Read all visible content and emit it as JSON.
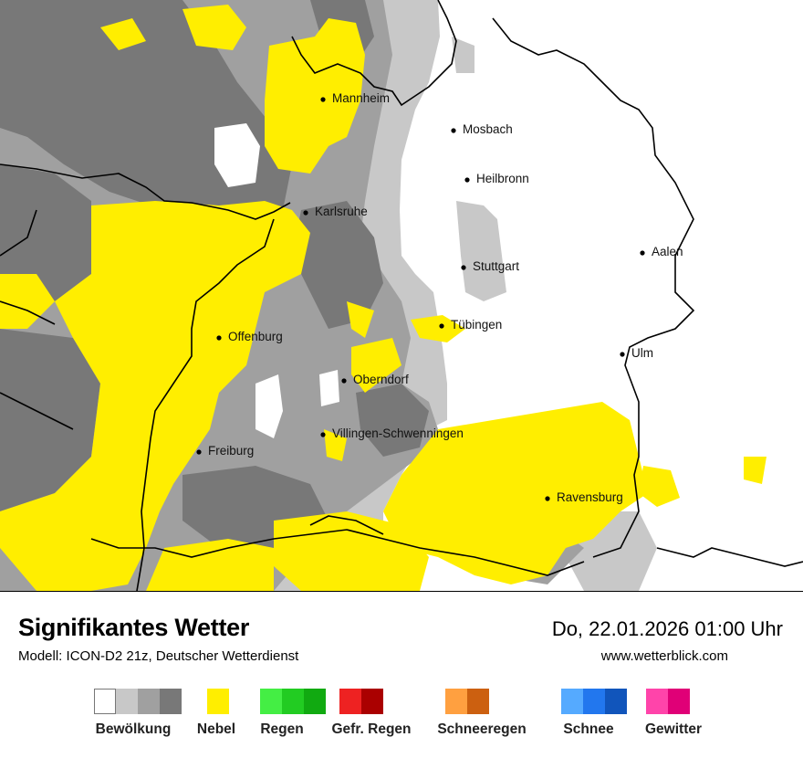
{
  "title": "Signifikantes Wetter",
  "model": "Modell: ICON-D2 21z, Deutscher Wetterdienst",
  "datetime": "Do, 22.01.2026 01:00 Uhr",
  "website": "www.wetterblick.com",
  "cities": [
    {
      "name": "Mannheim"
    },
    {
      "name": "Mosbach"
    },
    {
      "name": "Heilbronn"
    },
    {
      "name": "Karlsruhe"
    },
    {
      "name": "Aalen"
    },
    {
      "name": "Stuttgart"
    },
    {
      "name": "Tübingen"
    },
    {
      "name": "Offenburg"
    },
    {
      "name": "Ulm"
    },
    {
      "name": "Oberndorf"
    },
    {
      "name": "Villingen-Schwenningen"
    },
    {
      "name": "Freiburg"
    },
    {
      "name": "Ravensburg"
    }
  ],
  "legend": [
    {
      "label": "Bewölkung",
      "colors": [
        "#ffffff",
        "#c8c8c8",
        "#a0a0a0",
        "#787878"
      ]
    },
    {
      "label": "Nebel",
      "colors": [
        "#ffee00"
      ]
    },
    {
      "label": "Regen",
      "colors": [
        "#44ee44",
        "#22cc22",
        "#11aa11"
      ]
    },
    {
      "label": "Gefr. Regen",
      "colors": [
        "#ee2222",
        "#aa0000"
      ]
    },
    {
      "label": "Schneeregen",
      "colors": [
        "#ffa040",
        "#cc6010"
      ]
    },
    {
      "label": "Schnee",
      "colors": [
        "#55aaff",
        "#2277ee",
        "#1155bb"
      ]
    },
    {
      "label": "Gewitter",
      "colors": [
        "#ff44aa",
        "#e00077"
      ]
    }
  ],
  "colors": {
    "fog": "#ffee00",
    "cloud_light": "#c8c8c8",
    "cloud_medium": "#a0a0a0",
    "cloud_dark": "#787878",
    "border": "#000000"
  }
}
